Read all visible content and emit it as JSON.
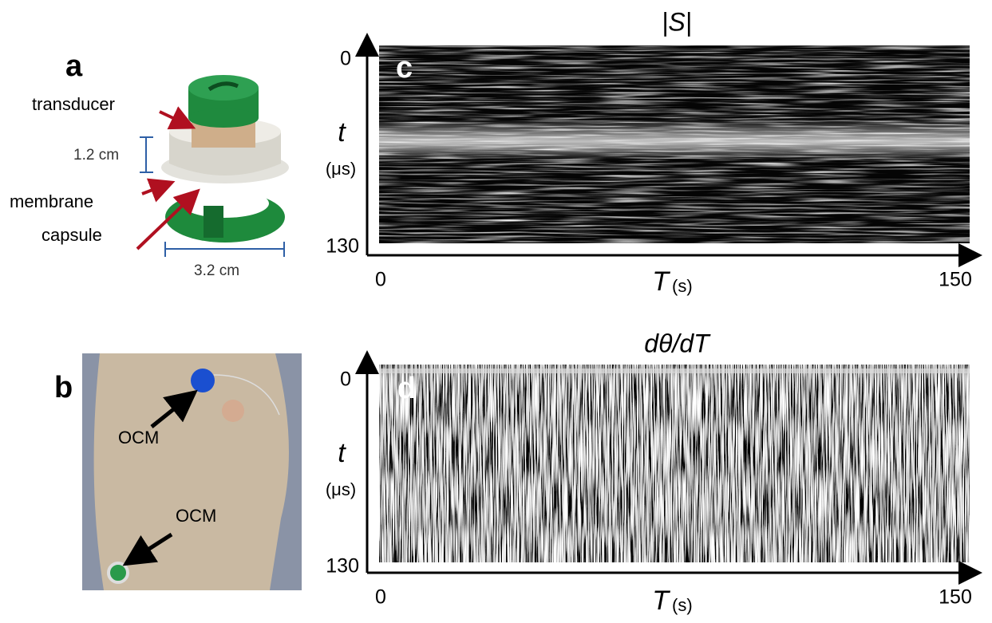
{
  "panel_a": {
    "label": "a",
    "annotations": [
      "transducer",
      "membrane",
      "capsule"
    ],
    "dimensions": [
      "1.2 cm",
      "3.2 cm"
    ]
  },
  "panel_b": {
    "label": "b",
    "annotations": [
      "OCM",
      "OCM"
    ]
  },
  "panel_c": {
    "label": "c",
    "title": "|S|",
    "y_label": "t",
    "y_unit": "(μs)",
    "x_label": "T",
    "x_unit": "(s)",
    "yticks": [
      "0",
      "130"
    ],
    "xticks": [
      "0",
      "150"
    ]
  },
  "panel_d": {
    "label": "d",
    "title": "dθ/dT",
    "y_label": "t",
    "y_unit": "(μs)",
    "x_label": "T",
    "x_unit": "(s)",
    "yticks": [
      "0",
      "130"
    ],
    "xticks": [
      "0",
      "150"
    ]
  }
}
